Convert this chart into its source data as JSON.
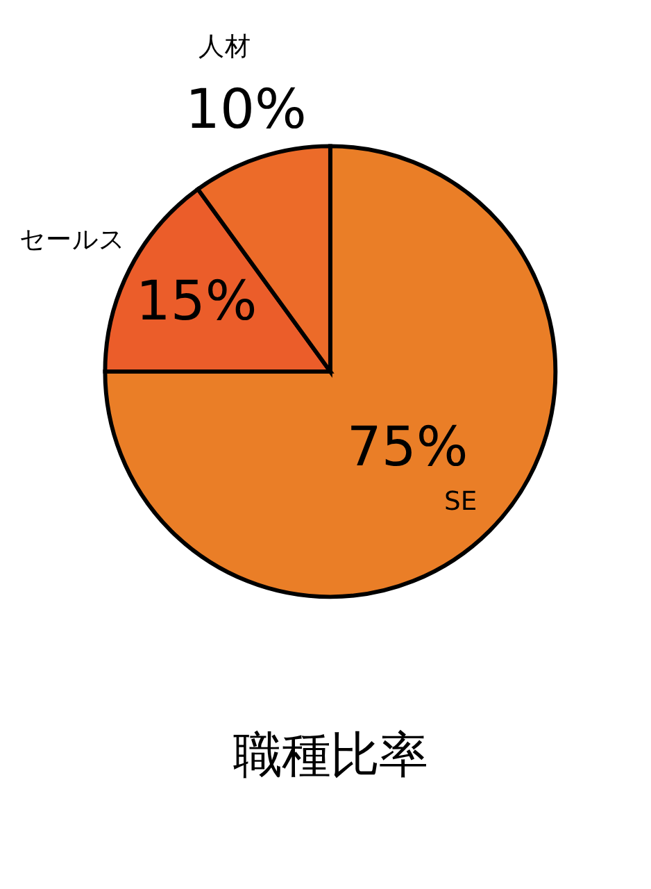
{
  "chart_data": {
    "type": "pie",
    "title": "職種比率",
    "categories": [
      "SE",
      "セールス",
      "人材"
    ],
    "values": [
      75,
      15,
      10
    ],
    "value_labels": [
      "75%",
      "15%",
      "10%"
    ],
    "colors": [
      "#ea7e27",
      "#eb5d2a",
      "#ec6b29"
    ],
    "legend": false
  }
}
